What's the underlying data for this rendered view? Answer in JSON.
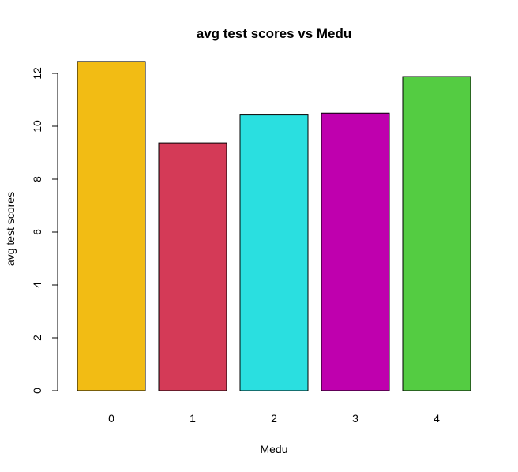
{
  "chart_data": {
    "type": "bar",
    "title": "avg test scores vs Medu",
    "xlabel": "Medu",
    "ylabel": "avg test scores",
    "categories": [
      "0",
      "1",
      "2",
      "3",
      "4"
    ],
    "values": [
      12.45,
      9.37,
      10.43,
      10.5,
      11.88
    ],
    "colors": [
      "#F2BC14",
      "#D43A57",
      "#2ADFE0",
      "#BF00AE",
      "#54CC42"
    ],
    "ylim": [
      0,
      12.45
    ],
    "yticks": [
      0,
      2,
      4,
      6,
      8,
      10,
      12
    ],
    "grid": false,
    "legend": "none"
  }
}
